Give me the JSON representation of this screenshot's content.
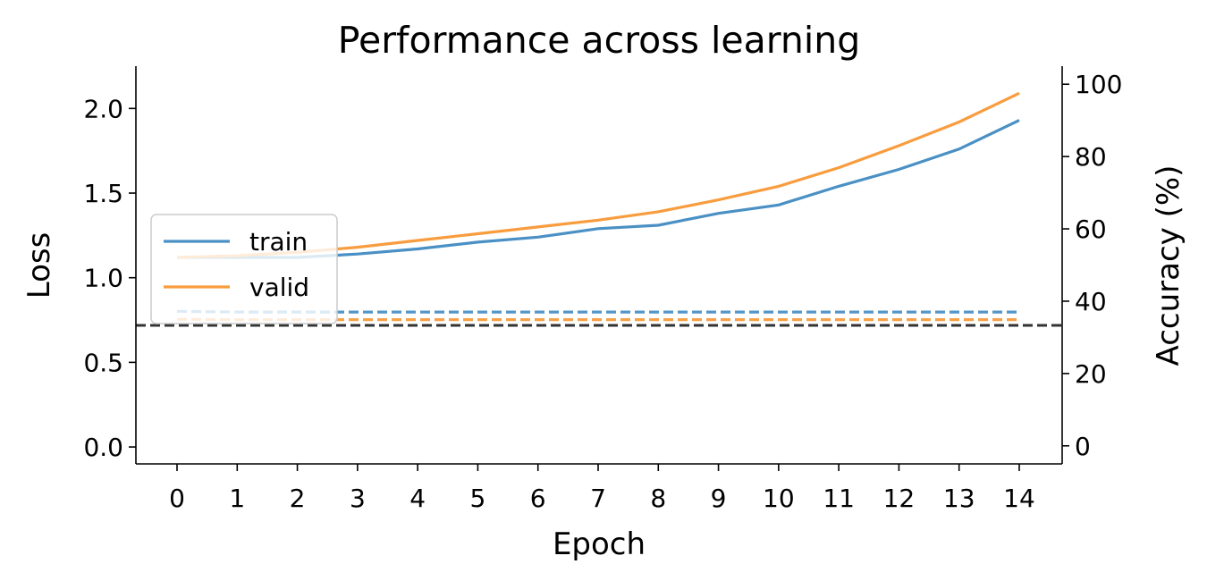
{
  "chart_data": {
    "type": "line",
    "title": "Performance across learning",
    "xlabel": "Epoch",
    "ylabel": "Loss",
    "y2label": "Accuracy (%)",
    "x": [
      0,
      1,
      2,
      3,
      4,
      5,
      6,
      7,
      8,
      9,
      10,
      11,
      12,
      13,
      14
    ],
    "ylim": [
      -0.1,
      2.25
    ],
    "y2lim": [
      -5,
      105
    ],
    "yticks": [
      0.0,
      0.5,
      1.0,
      1.5,
      2.0
    ],
    "ytick_labels": [
      "0.0",
      "0.5",
      "1.0",
      "1.5",
      "2.0"
    ],
    "y2ticks": [
      0,
      20,
      40,
      60,
      80,
      100
    ],
    "y2tick_labels": [
      "0",
      "20",
      "40",
      "60",
      "80",
      "100"
    ],
    "grid": false,
    "legend_placement": "center-left",
    "series": [
      {
        "name": "train",
        "axis": "loss",
        "style": "solid",
        "color": "#4a90c4",
        "values": [
          1.12,
          1.12,
          1.12,
          1.14,
          1.17,
          1.21,
          1.24,
          1.29,
          1.31,
          1.38,
          1.43,
          1.54,
          1.64,
          1.76,
          1.93
        ]
      },
      {
        "name": "valid",
        "axis": "loss",
        "style": "solid",
        "color": "#f89c3e",
        "values": [
          1.12,
          1.13,
          1.15,
          1.18,
          1.22,
          1.26,
          1.3,
          1.34,
          1.39,
          1.46,
          1.54,
          1.65,
          1.78,
          1.92,
          2.09
        ]
      },
      {
        "axis": "accuracy",
        "style": "dashed",
        "color": "#4a90c4",
        "values": [
          37.2,
          37.0,
          37.0,
          37.0,
          37.0,
          37.0,
          37.0,
          37.0,
          37.0,
          37.0,
          37.0,
          37.0,
          37.0,
          37.0,
          37.0
        ]
      },
      {
        "axis": "accuracy",
        "style": "dashed",
        "color": "#f89c3e",
        "values": [
          35.0,
          34.9,
          34.9,
          34.9,
          34.9,
          34.9,
          34.9,
          34.9,
          34.9,
          34.9,
          34.9,
          34.9,
          34.9,
          34.9,
          34.9
        ]
      }
    ],
    "reference_lines": [
      {
        "axis": "accuracy",
        "value": 33.33,
        "style": "dashed",
        "color": "#333333"
      }
    ]
  }
}
